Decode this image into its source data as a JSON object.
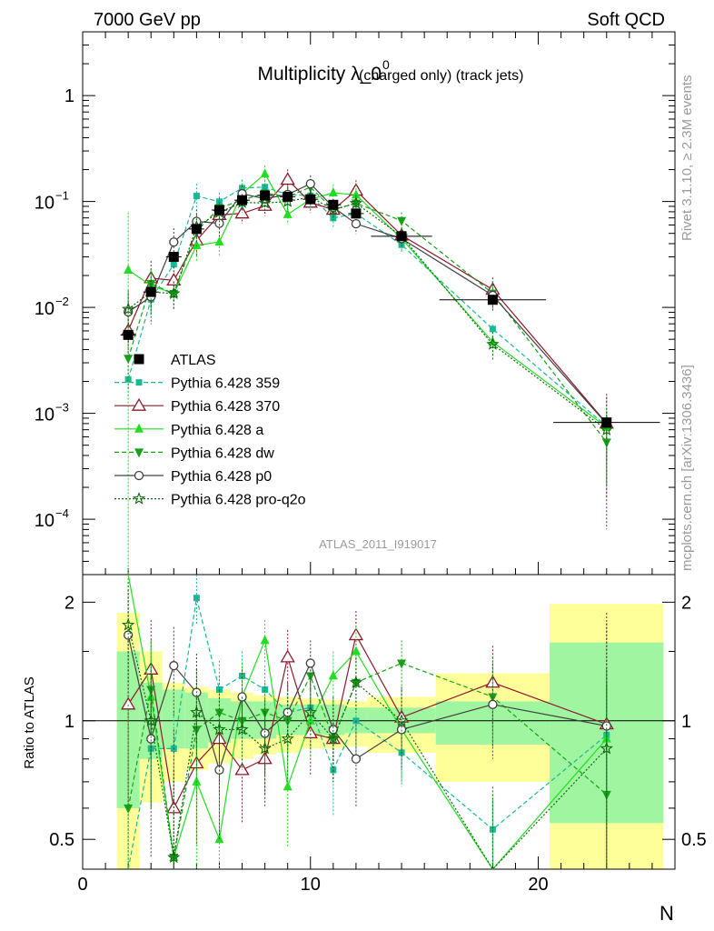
{
  "header": {
    "left": "7000 GeV pp",
    "right": "Soft QCD"
  },
  "title": {
    "main": "Multiplicity λ_0",
    "sup": "0",
    "sub": "(charged only) (track jets)"
  },
  "side_labels": {
    "rivet": "Rivet 3.1.10, ≥ 2.3M events",
    "mcplots": "mcplots.cern.ch [arXiv:1306.3436]"
  },
  "analysis_id": "ATLAS_2011_I919017",
  "ratio_ylabel": "Ratio to ATLAS",
  "xlabel": "N",
  "top_ticks": [
    "1",
    "10−1",
    "10−2",
    "10−3",
    "10−4"
  ],
  "ratio_ticks": [
    "2",
    "1",
    "0.5"
  ],
  "x_ticks": [
    "0",
    "10",
    "20"
  ],
  "colors": {
    "ATLAS": "#000000",
    "359": "#1ab894",
    "370": "#8b1a2b",
    "a": "#22dd22",
    "dw": "#19a019",
    "p0": "#404040",
    "pro": "#0d6a0d",
    "band_inner": "#a0f5a0",
    "band_outer": "#ffff9a"
  },
  "chart_data": {
    "type": "line",
    "xlim": [
      0,
      26
    ],
    "ylim": [
      3e-05,
      4
    ],
    "yscale": "log",
    "ratio_ylim": [
      0.42,
      2.35
    ],
    "x": [
      2,
      3,
      4,
      5,
      6,
      7,
      8,
      9,
      10,
      11,
      12,
      14,
      18,
      23
    ],
    "data": {
      "name": "ATLAS",
      "values": [
        0.0055,
        0.014,
        0.03,
        0.055,
        0.083,
        0.103,
        0.114,
        0.111,
        0.105,
        0.093,
        0.077,
        0.047,
        0.0118,
        0.00082
      ],
      "bins": [
        [
          1.5,
          2.5
        ],
        [
          2.5,
          3.5
        ],
        [
          3.5,
          4.5
        ],
        [
          4.5,
          5.5
        ],
        [
          5.5,
          6.5
        ],
        [
          6.5,
          7.5
        ],
        [
          7.5,
          8.5
        ],
        [
          8.5,
          9.5
        ],
        [
          9.5,
          10.5
        ],
        [
          10.5,
          11.5
        ],
        [
          11.5,
          12.5
        ],
        [
          12.5,
          15.5
        ],
        [
          15.5,
          20.5
        ],
        [
          20.5,
          25.5
        ]
      ],
      "band_inner": [
        [
          0.6,
          1.5
        ],
        [
          0.8,
          1.25
        ],
        [
          0.85,
          1.2
        ],
        [
          0.85,
          1.18
        ],
        [
          0.88,
          1.14
        ],
        [
          0.9,
          1.12
        ],
        [
          0.9,
          1.12
        ],
        [
          0.92,
          1.1
        ],
        [
          0.92,
          1.1
        ],
        [
          0.92,
          1.1
        ],
        [
          0.93,
          1.08
        ],
        [
          0.93,
          1.08
        ],
        [
          0.87,
          1.12
        ],
        [
          0.55,
          1.58
        ]
      ],
      "band_outer": [
        [
          0.35,
          1.88
        ],
        [
          0.62,
          1.5
        ],
        [
          0.7,
          1.25
        ],
        [
          0.75,
          1.22
        ],
        [
          0.78,
          1.2
        ],
        [
          0.8,
          1.18
        ],
        [
          0.82,
          1.16
        ],
        [
          0.83,
          1.15
        ],
        [
          0.85,
          1.14
        ],
        [
          0.85,
          1.13
        ],
        [
          0.86,
          1.12
        ],
        [
          0.83,
          1.15
        ],
        [
          0.7,
          1.32
        ],
        [
          0.35,
          1.98
        ]
      ]
    },
    "series": [
      {
        "name": "Pythia 6.428 359",
        "key": "359",
        "marker": "square",
        "dash": "5,3",
        "ratio": [
          0.38,
          0.85,
          0.85,
          2.05,
          1.2,
          1.3,
          1.2,
          1.05,
          1.08,
          0.75,
          1.0,
          0.83,
          0.53,
          0.92
        ],
        "err": [
          0.35,
          0.25,
          0.2,
          0.3,
          0.22,
          0.2,
          0.18,
          0.18,
          0.18,
          0.18,
          0.2,
          0.15,
          0.1,
          0.3
        ]
      },
      {
        "name": "Pythia 6.428 370",
        "key": "370",
        "marker": "triangle-open",
        "dash": "",
        "ratio": [
          1.1,
          1.35,
          0.6,
          0.78,
          0.9,
          0.75,
          0.8,
          1.45,
          0.93,
          0.9,
          1.65,
          1.02,
          1.25,
          0.98
        ],
        "err": [
          0.5,
          0.45,
          0.35,
          0.3,
          0.25,
          0.2,
          0.2,
          0.25,
          0.2,
          0.2,
          0.25,
          0.2,
          0.3,
          0.9
        ]
      },
      {
        "name": "Pythia 6.428 a",
        "key": "a",
        "marker": "triangle",
        "dash": "",
        "ratio": [
          4.1,
          1.15,
          0.45,
          0.7,
          0.5,
          1.15,
          1.6,
          0.68,
          1.0,
          1.3,
          1.5,
          0.95,
          0.4,
          0.9
        ],
        "err": [
          2.5,
          0.4,
          0.3,
          0.3,
          0.25,
          0.25,
          0.2,
          0.2,
          0.2,
          0.2,
          0.25,
          0.25,
          0.25,
          0.5
        ]
      },
      {
        "name": "Pythia 6.428 dw",
        "key": "dw",
        "marker": "triangle-down",
        "dash": "5,3",
        "ratio": [
          0.6,
          1.2,
          0.45,
          0.95,
          1.05,
          1.0,
          1.05,
          1.0,
          1.3,
          0.9,
          1.25,
          1.4,
          1.15,
          0.65
        ],
        "err": [
          0.5,
          0.4,
          0.3,
          0.3,
          0.25,
          0.2,
          0.2,
          0.2,
          0.2,
          0.2,
          0.2,
          0.2,
          0.3,
          0.6
        ]
      },
      {
        "name": "Pythia 6.428 p0",
        "key": "p0",
        "marker": "circle-open",
        "dash": "",
        "ratio": [
          1.65,
          0.9,
          1.38,
          1.18,
          0.75,
          1.15,
          0.93,
          1.05,
          1.4,
          0.95,
          0.8,
          0.95,
          1.1,
          0.97
        ],
        "err": [
          0.5,
          0.45,
          0.35,
          0.3,
          0.25,
          0.2,
          0.2,
          0.2,
          0.2,
          0.2,
          0.2,
          0.2,
          0.3,
          0.8
        ]
      },
      {
        "name": "Pythia 6.428 pro-q2o",
        "key": "pro",
        "marker": "star",
        "dash": "2,2",
        "ratio": [
          1.75,
          1.0,
          0.45,
          1.05,
          0.95,
          0.95,
          0.85,
          0.9,
          1.05,
          0.9,
          1.25,
          1.0,
          0.38,
          0.85
        ],
        "err": [
          0.5,
          0.4,
          0.3,
          0.3,
          0.25,
          0.2,
          0.2,
          0.2,
          0.2,
          0.2,
          0.2,
          0.2,
          0.3,
          0.5
        ]
      }
    ]
  }
}
